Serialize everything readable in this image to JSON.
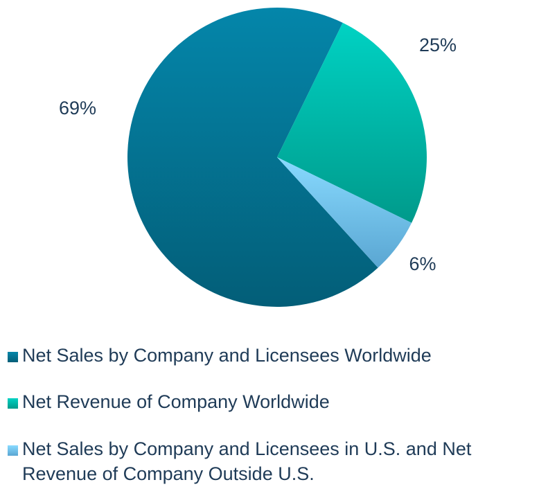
{
  "chart_data": {
    "type": "pie",
    "categories": [
      "Net Sales by Company and Licensees Worldwide",
      "Net Revenue of Company Worldwide",
      "Net Sales by Company and Licensees in U.S. and Net Revenue of Company Outside U.S."
    ],
    "values": [
      69,
      25,
      6
    ],
    "value_labels": [
      "69%",
      "25%",
      "6%"
    ],
    "colors": [
      "#04708f",
      "#00b5a6",
      "#6cc0ea"
    ],
    "legend": "bottom"
  }
}
